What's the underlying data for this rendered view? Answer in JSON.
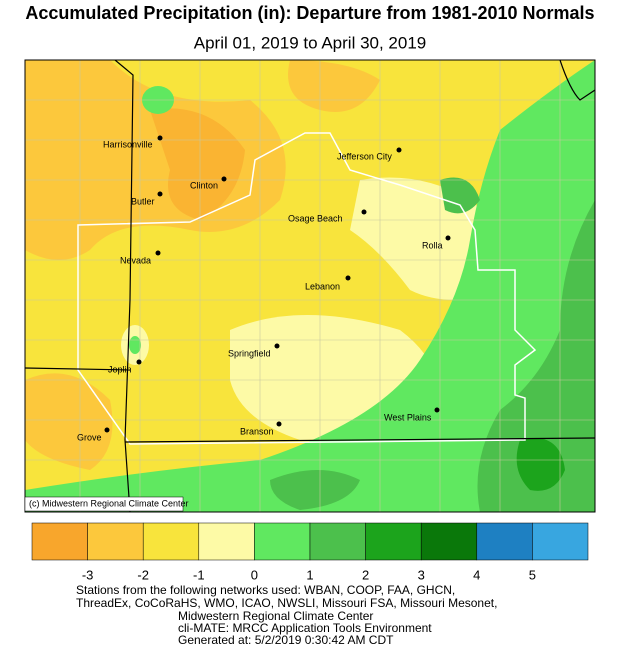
{
  "title": "Accumulated Precipitation (in): Departure from 1981-2010 Normals",
  "subtitle": "April 01, 2019 to April 30, 2019",
  "stations": [
    "Harrisonville",
    "Jefferson City",
    "Clinton",
    "Butler",
    "Osage Beach",
    "Rolla",
    "Nevada",
    "Lebanon",
    "Springfield",
    "Joplin",
    "West Plains",
    "Branson",
    "Grove"
  ],
  "credit": "(c) Midwestern Regional Climate Center",
  "legend": {
    "colors": [
      "#f8a62c",
      "#fcc83c",
      "#f8e43c",
      "#fdfaa6",
      "#60e860",
      "#4cc04c",
      "#1ca41c",
      "#0a780a",
      "#1e80c2",
      "#38a6e0"
    ],
    "ticks": [
      -3,
      -2,
      -1,
      0,
      1,
      2,
      3,
      4,
      5
    ]
  },
  "footer": [
    "Stations from the following networks used: WBAN, COOP, FAA, GHCN,",
    "ThreadEx, CoCoRaHS, WMO, ICAO, NWSLI, Missouri FSA, Missouri Mesonet,",
    "Midwestern Regional Climate Center",
    "cli-MATE: MRCC Application Tools Environment",
    "Generated at: 5/2/2019 0:30:42 AM CDT"
  ]
}
